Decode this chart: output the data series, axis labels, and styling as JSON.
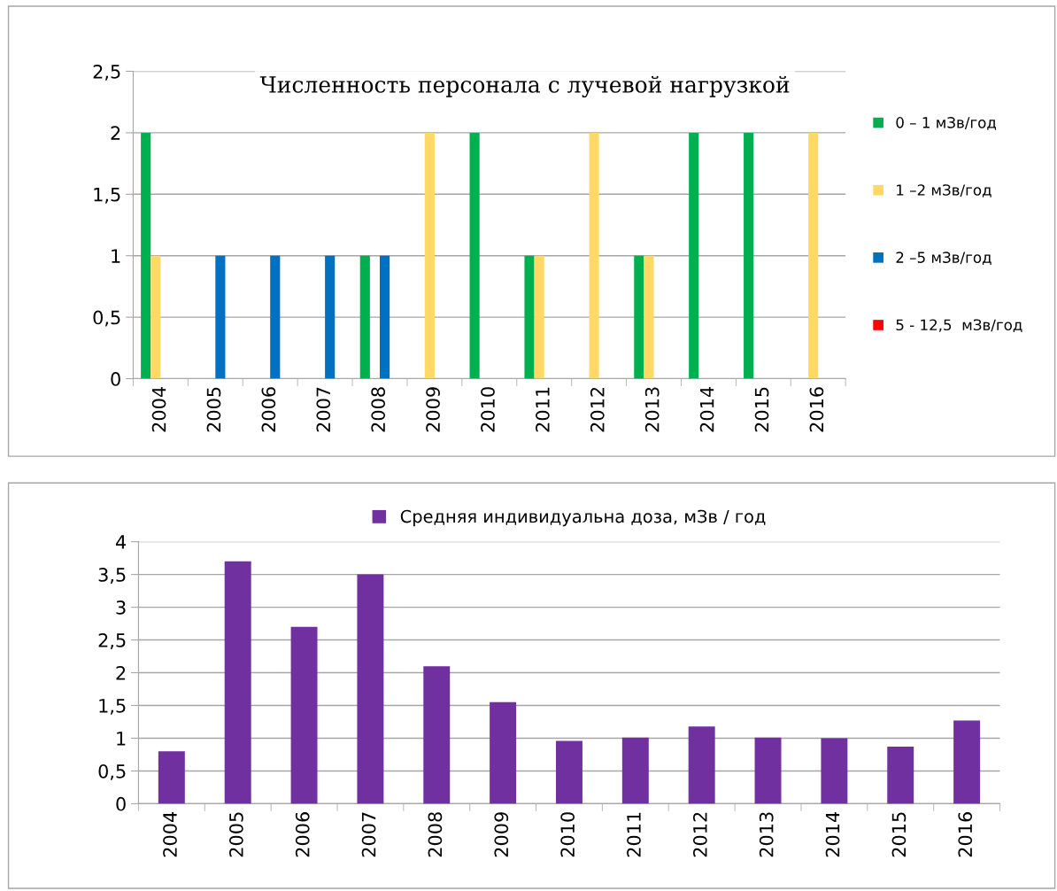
{
  "chart_data": [
    {
      "type": "bar",
      "title": "Численность персонала с лучевой нагрузкой",
      "categories": [
        "2004",
        "2005",
        "2006",
        "2007",
        "2008",
        "2009",
        "2010",
        "2011",
        "2012",
        "2013",
        "2014",
        "2015",
        "2016"
      ],
      "series": [
        {
          "name": "0 – 1 мЗв/год",
          "color": "#00b050",
          "values": [
            2,
            null,
            null,
            null,
            1,
            null,
            2,
            1,
            null,
            1,
            2,
            2,
            null
          ]
        },
        {
          "name": "1 –2 мЗв/год",
          "color": "#ffd966",
          "values": [
            1,
            null,
            null,
            null,
            null,
            2,
            null,
            1,
            2,
            1,
            null,
            null,
            2
          ]
        },
        {
          "name": "2 –5 мЗв/год",
          "color": "#0070c0",
          "values": [
            null,
            1,
            1,
            1,
            1,
            null,
            null,
            null,
            null,
            null,
            null,
            null,
            null
          ]
        },
        {
          "name": "5 - 12,5  мЗв/год",
          "color": "#ff0000",
          "values": [
            null,
            null,
            null,
            null,
            null,
            null,
            null,
            null,
            null,
            null,
            null,
            null,
            null
          ]
        }
      ],
      "ylim": [
        0,
        2.5
      ],
      "yticks": [
        0,
        {
          "value": 0.5,
          "label": "0,5"
        },
        1,
        {
          "value": 1.5,
          "label": "1,5"
        },
        2,
        {
          "value": 2.5,
          "label": "2,5"
        }
      ],
      "grid": "y",
      "legend": "right"
    },
    {
      "type": "bar",
      "categories": [
        "2004",
        "2005",
        "2006",
        "2007",
        "2008",
        "2009",
        "2010",
        "2011",
        "2012",
        "2013",
        "2014",
        "2015",
        "2016"
      ],
      "series": [
        {
          "name": "Средняя индивидуальна доза, мЗв / год",
          "color": "#7030a0",
          "values": [
            0.8,
            3.7,
            2.7,
            3.5,
            2.1,
            1.55,
            0.96,
            1.01,
            1.18,
            1.01,
            1.0,
            0.87,
            1.27
          ]
        }
      ],
      "ylim": [
        0,
        4
      ],
      "yticks": [
        0,
        {
          "value": 0.5,
          "label": "0,5"
        },
        1,
        {
          "value": 1.5,
          "label": "1,5"
        },
        2,
        {
          "value": 2.5,
          "label": "2,5"
        },
        3,
        {
          "value": 3.5,
          "label": "3,5"
        },
        4
      ],
      "grid": "y",
      "legend": "top"
    }
  ]
}
